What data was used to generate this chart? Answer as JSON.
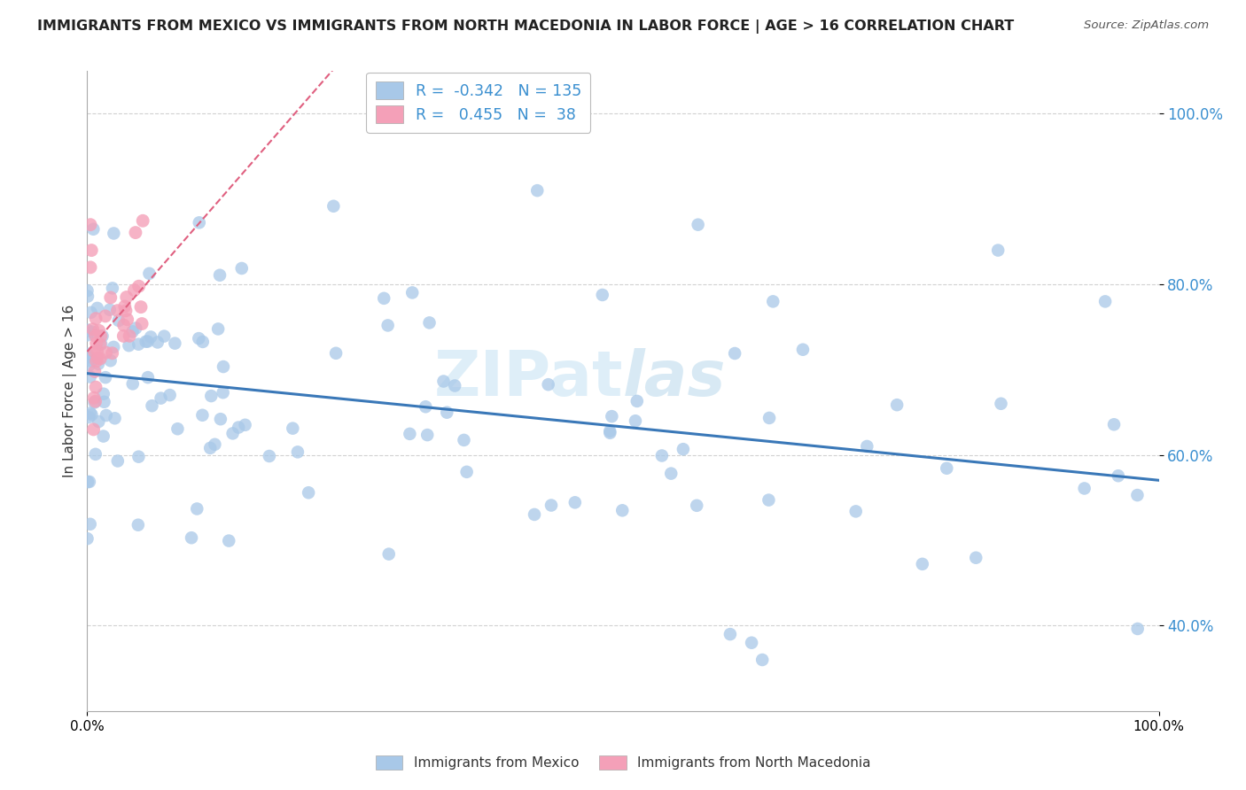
{
  "title": "IMMIGRANTS FROM MEXICO VS IMMIGRANTS FROM NORTH MACEDONIA IN LABOR FORCE | AGE > 16 CORRELATION CHART",
  "source": "Source: ZipAtlas.com",
  "xlabel_mexico": "Immigrants from Mexico",
  "xlabel_macedonia": "Immigrants from North Macedonia",
  "ylabel": "In Labor Force | Age > 16",
  "R_mexico": -0.342,
  "N_mexico": 135,
  "R_macedonia": 0.455,
  "N_macedonia": 38,
  "color_mexico": "#a8c8e8",
  "color_mexico_line": "#3a78b8",
  "color_macedonia": "#f4a0b8",
  "color_macedonia_line": "#e06080",
  "xlim": [
    0.0,
    1.0
  ],
  "ylim": [
    0.3,
    1.05
  ],
  "yticks": [
    0.4,
    0.6,
    0.8,
    1.0
  ],
  "ytick_labels": [
    "40.0%",
    "60.0%",
    "80.0%",
    "100.0%"
  ],
  "grid_color": "#cccccc",
  "background_color": "#ffffff",
  "watermark1": "ZIPat",
  "watermark2": "las"
}
